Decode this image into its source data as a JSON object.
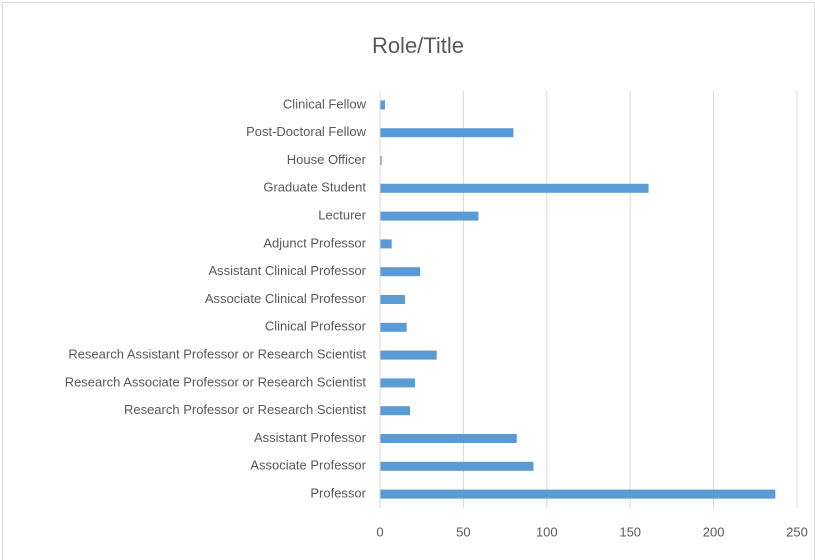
{
  "chart_data": {
    "type": "bar",
    "orientation": "horizontal",
    "title": "Role/Title",
    "categories": [
      "Clinical Fellow",
      "Post-Doctoral Fellow",
      "House Officer",
      "Graduate Student",
      "Lecturer",
      "Adjunct Professor",
      "Assistant Clinical Professor",
      "Associate Clinical Professor",
      "Clinical Professor",
      "Research Assistant Professor or Research Scientist",
      "Research Associate Professor or Research Scientist",
      "Research Professor or Research Scientist",
      "Assistant Professor",
      "Associate Professor",
      "Professor"
    ],
    "values": [
      3,
      80,
      1,
      161,
      59,
      7,
      24,
      15,
      16,
      34,
      21,
      18,
      82,
      92,
      237
    ],
    "color": "#5b9bd5",
    "xlim": [
      0,
      250
    ],
    "xticks": [
      0,
      50,
      100,
      150,
      200,
      250
    ],
    "grid": true
  }
}
